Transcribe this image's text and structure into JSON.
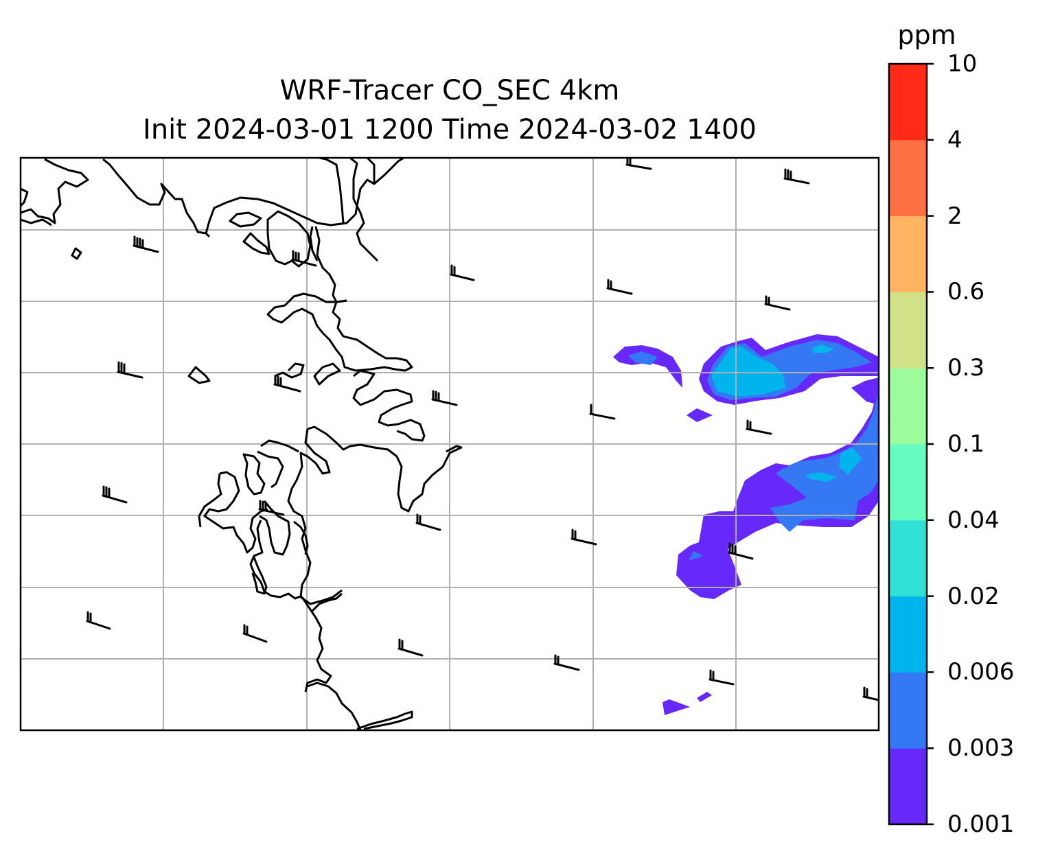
{
  "title": {
    "line1": "WRF-Tracer CO_SEC 4km",
    "line2": "Init 2024-03-01 1200 Time 2024-03-02 1400"
  },
  "colorbar": {
    "unit": "ppm",
    "levels": [
      "0.001",
      "0.003",
      "0.006",
      "0.02",
      "0.04",
      "0.1",
      "0.3",
      "0.6",
      "2",
      "4",
      "10"
    ],
    "colors": [
      "#6629fa",
      "#3478f3",
      "#01b5ec",
      "#31e0d5",
      "#66fbbf",
      "#9cfc9b",
      "#d0e187",
      "#ffb461",
      "#ff7142",
      "#ff2a18"
    ]
  },
  "map": {
    "gridlines": true,
    "frame_color": "#000000",
    "grid_color": "#b0b0b0",
    "coastline_color": "#000000",
    "layers": [
      "coastline",
      "tracer-concentration",
      "wind-barbs"
    ]
  }
}
